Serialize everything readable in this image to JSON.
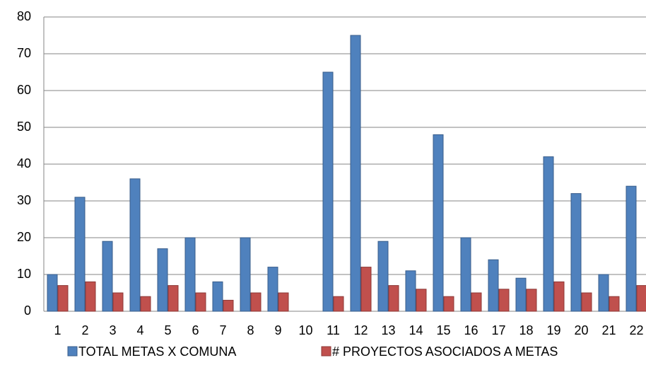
{
  "chart_data": {
    "type": "bar",
    "categories": [
      "1",
      "2",
      "3",
      "4",
      "5",
      "6",
      "7",
      "8",
      "9",
      "10",
      "11",
      "12",
      "13",
      "14",
      "15",
      "16",
      "17",
      "18",
      "19",
      "20",
      "21",
      "22"
    ],
    "series": [
      {
        "name": "TOTAL METAS X COMUNA",
        "color": "#4f81bd",
        "values": [
          10,
          31,
          19,
          36,
          17,
          20,
          8,
          20,
          12,
          null,
          65,
          75,
          19,
          11,
          48,
          20,
          14,
          9,
          42,
          32,
          10,
          34
        ]
      },
      {
        "name": "# PROYECTOS ASOCIADOS A METAS",
        "color": "#c0504d",
        "values": [
          7,
          8,
          5,
          4,
          7,
          5,
          3,
          5,
          5,
          null,
          4,
          12,
          7,
          6,
          4,
          5,
          6,
          6,
          8,
          5,
          4,
          7
        ]
      }
    ],
    "ylim": [
      0,
      80
    ],
    "yticks": [
      0,
      10,
      20,
      30,
      40,
      50,
      60,
      70,
      80
    ],
    "grid": true,
    "legend": "bottom"
  }
}
